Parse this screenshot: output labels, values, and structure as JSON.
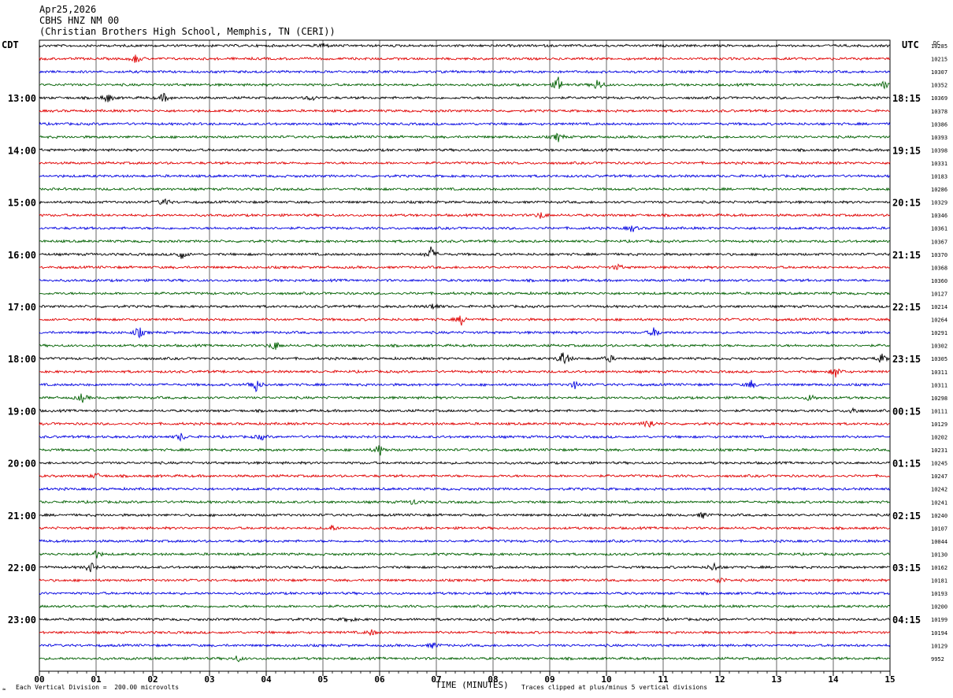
{
  "header": {
    "date": "Apr25,2026",
    "station": "CBHS HNZ NM 00",
    "location": "(Christian Brothers High School, Memphis, TN (CERI))"
  },
  "labels": {
    "left_tz": "CDT",
    "right_tz": "UTC",
    "dc_header": "DC"
  },
  "footer": {
    "scale_note": "Each Vertical Division =  200.00 microvolts",
    "xlabel": "TIME (MINUTES)",
    "clip_note": "Traces clipped at plus/minus 5 vertical divisions",
    "corner_mark": "≈"
  },
  "colors": {
    "trace_cycle": [
      "#000000",
      "#e00000",
      "#0000e0",
      "#006000"
    ],
    "grid": "#000000"
  },
  "chart_data": {
    "type": "line",
    "title": "CBHS HNZ NM 00",
    "xlabel": "TIME (MINUTES)",
    "x_ticks": [
      "00",
      "01",
      "02",
      "03",
      "04",
      "05",
      "06",
      "07",
      "08",
      "09",
      "10",
      "11",
      "12",
      "13",
      "14",
      "15"
    ],
    "xlim": [
      0,
      15
    ],
    "left_hour_labels": [
      "13:00",
      "14:00",
      "15:00",
      "16:00",
      "17:00",
      "18:00",
      "19:00",
      "20:00",
      "21:00",
      "22:00",
      "23:00"
    ],
    "right_hour_labels": [
      "18:15",
      "19:15",
      "20:15",
      "21:15",
      "22:15",
      "23:15",
      "00:15",
      "01:15",
      "02:15",
      "03:15",
      "04:15"
    ],
    "first_hour_label_trace_index": 4,
    "traces_per_hour": 4,
    "trace_count": 48,
    "dc_offsets": [
      "10285",
      "10215",
      "10307",
      "10352",
      "10369",
      "10378",
      "10386",
      "10393",
      "10398",
      "10331",
      "10183",
      "10286",
      "10329",
      "10346",
      "10361",
      "10367",
      "10370",
      "10368",
      "10360",
      "10127",
      "10214",
      "10264",
      "10291",
      "10302",
      "10305",
      "10311",
      "10311",
      "10298",
      "10111",
      "10129",
      "10202",
      "10231",
      "10245",
      "10247",
      "10242",
      "10241",
      "10240",
      "10107",
      "10044",
      "10130",
      "10162",
      "10181",
      "10193",
      "10200",
      "10199",
      "10194",
      "10129",
      "9952"
    ],
    "events": [
      {
        "trace": 0,
        "minute": 5.0,
        "amp": 4
      },
      {
        "trace": 1,
        "minute": 1.7,
        "amp": 6
      },
      {
        "trace": 3,
        "minute": 9.15,
        "amp": 10
      },
      {
        "trace": 3,
        "minute": 9.85,
        "amp": 9
      },
      {
        "trace": 3,
        "minute": 14.9,
        "amp": 5
      },
      {
        "trace": 4,
        "minute": 1.2,
        "amp": 7
      },
      {
        "trace": 4,
        "minute": 2.2,
        "amp": 6
      },
      {
        "trace": 4,
        "minute": 4.8,
        "amp": 4
      },
      {
        "trace": 7,
        "minute": 9.15,
        "amp": 6
      },
      {
        "trace": 12,
        "minute": 2.2,
        "amp": 6
      },
      {
        "trace": 13,
        "minute": 8.85,
        "amp": 5
      },
      {
        "trace": 14,
        "minute": 10.45,
        "amp": 5
      },
      {
        "trace": 16,
        "minute": 2.5,
        "amp": 7
      },
      {
        "trace": 16,
        "minute": 6.9,
        "amp": 10
      },
      {
        "trace": 17,
        "minute": 10.2,
        "amp": 4
      },
      {
        "trace": 20,
        "minute": 6.95,
        "amp": 5
      },
      {
        "trace": 21,
        "minute": 7.45,
        "amp": 7
      },
      {
        "trace": 22,
        "minute": 1.75,
        "amp": 8
      },
      {
        "trace": 22,
        "minute": 10.85,
        "amp": 7
      },
      {
        "trace": 23,
        "minute": 4.15,
        "amp": 7
      },
      {
        "trace": 24,
        "minute": 9.25,
        "amp": 13
      },
      {
        "trace": 24,
        "minute": 10.05,
        "amp": 5
      },
      {
        "trace": 24,
        "minute": 14.85,
        "amp": 6
      },
      {
        "trace": 25,
        "minute": 14.05,
        "amp": 8
      },
      {
        "trace": 26,
        "minute": 3.8,
        "amp": 12
      },
      {
        "trace": 26,
        "minute": 9.45,
        "amp": 5
      },
      {
        "trace": 26,
        "minute": 12.55,
        "amp": 6
      },
      {
        "trace": 27,
        "minute": 0.75,
        "amp": 6
      },
      {
        "trace": 27,
        "minute": 13.6,
        "amp": 5
      },
      {
        "trace": 28,
        "minute": 14.35,
        "amp": 5
      },
      {
        "trace": 29,
        "minute": 10.75,
        "amp": 8
      },
      {
        "trace": 30,
        "minute": 2.5,
        "amp": 5
      },
      {
        "trace": 30,
        "minute": 3.9,
        "amp": 4
      },
      {
        "trace": 31,
        "minute": 6.0,
        "amp": 8
      },
      {
        "trace": 33,
        "minute": 1.0,
        "amp": 4
      },
      {
        "trace": 35,
        "minute": 6.6,
        "amp": 4
      },
      {
        "trace": 36,
        "minute": 11.7,
        "amp": 4
      },
      {
        "trace": 37,
        "minute": 5.15,
        "amp": 4
      },
      {
        "trace": 39,
        "minute": 1.0,
        "amp": 5
      },
      {
        "trace": 40,
        "minute": 0.9,
        "amp": 7
      },
      {
        "trace": 40,
        "minute": 11.9,
        "amp": 6
      },
      {
        "trace": 41,
        "minute": 12.0,
        "amp": 5
      },
      {
        "trace": 44,
        "minute": 5.45,
        "amp": 4
      },
      {
        "trace": 45,
        "minute": 5.85,
        "amp": 4
      },
      {
        "trace": 46,
        "minute": 6.95,
        "amp": 4
      },
      {
        "trace": 47,
        "minute": 3.5,
        "amp": 4
      }
    ]
  }
}
